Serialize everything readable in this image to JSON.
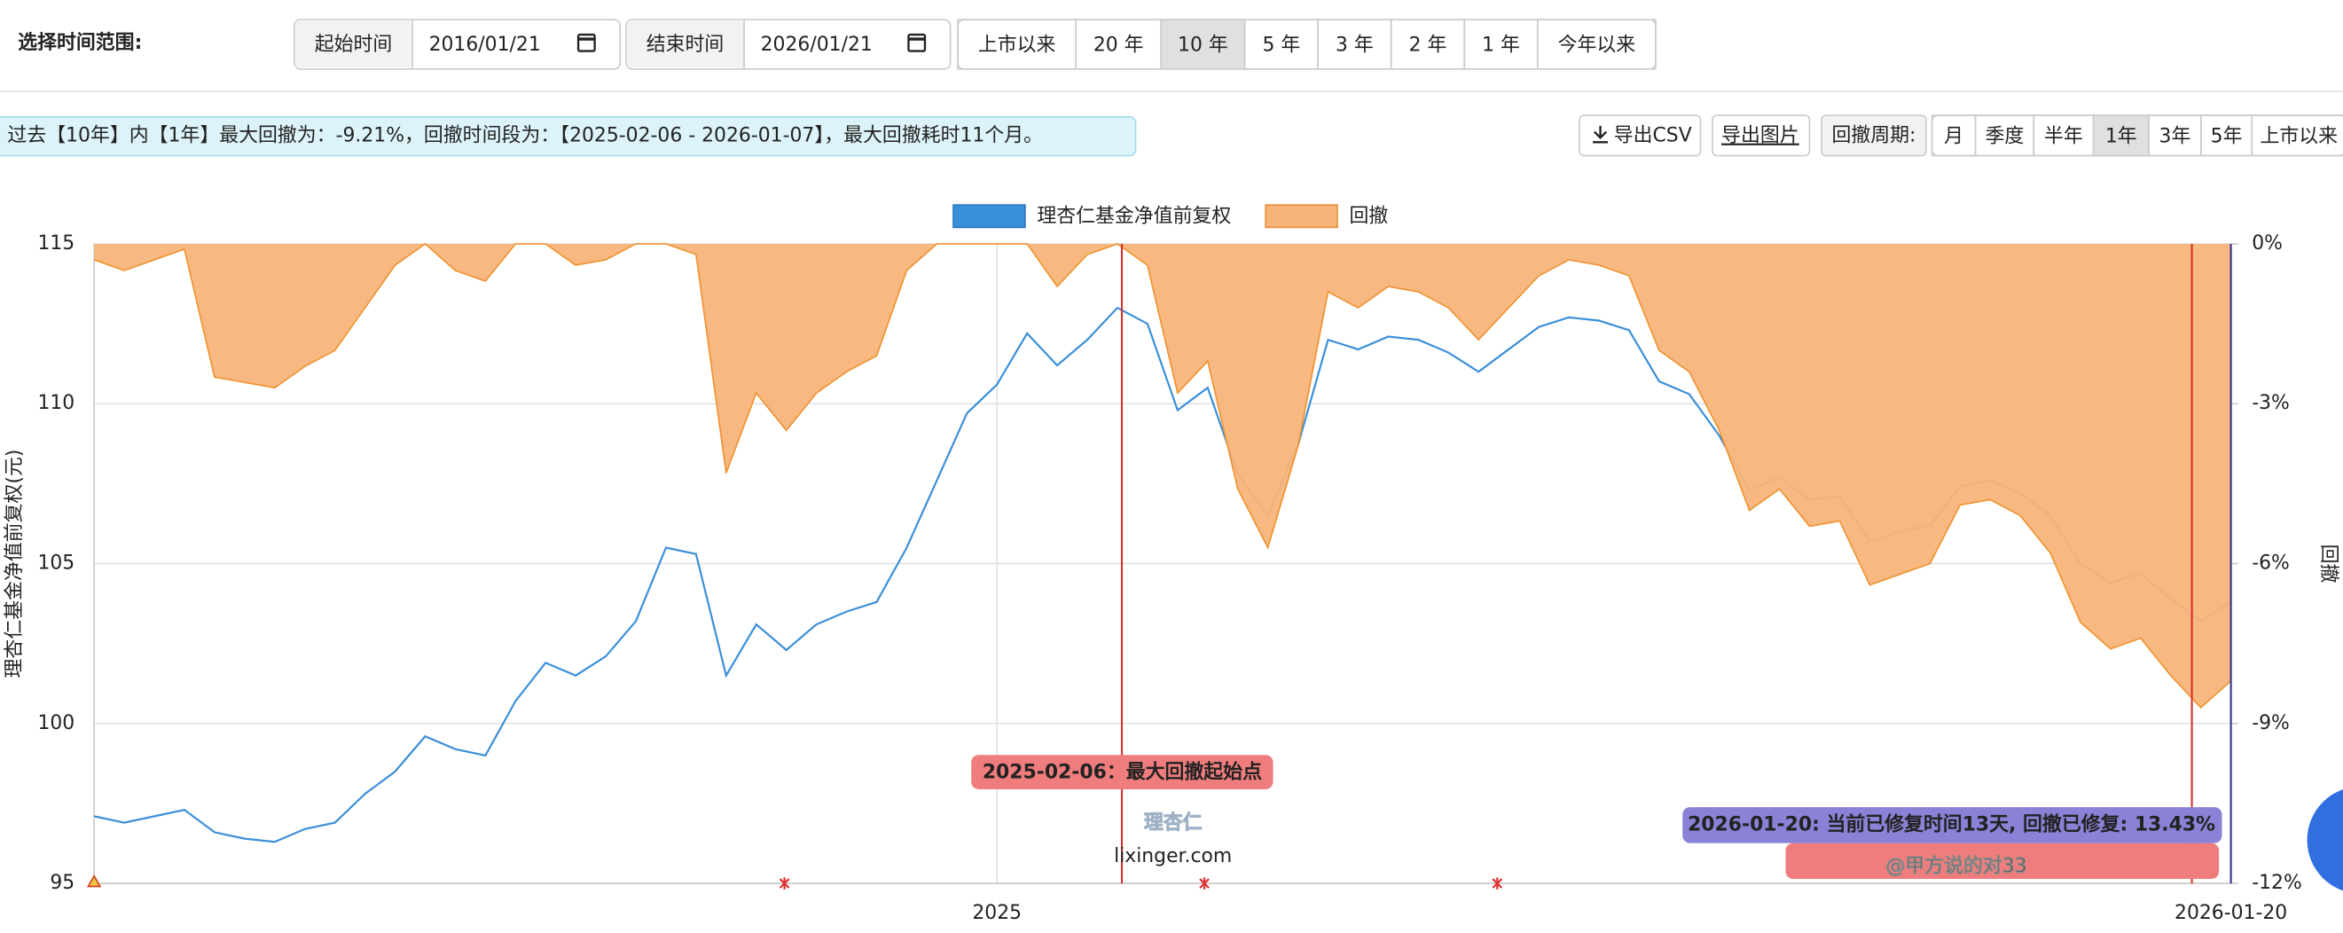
{
  "toolbar": {
    "label": "选择时间范围:",
    "start_label": "起始时间",
    "start_date": "2016/01/21",
    "end_label": "结束时间",
    "end_date": "2026/01/21",
    "ranges": [
      "上市以来",
      "20 年",
      "10 年",
      "5 年",
      "3 年",
      "2 年",
      "1 年",
      "今年以来"
    ],
    "active_range": 2
  },
  "summary": "过去【10年】内【1年】最大回撤为：-9.21%，回撤时间段为：【2025-02-06 - 2026-01-07】，最大回撤耗时11个月。",
  "actions": [
    "导出CSV",
    "导出图片"
  ],
  "period_label": "回撤周期:",
  "periods": [
    "月",
    "季度",
    "半年",
    "1年",
    "3年",
    "5年",
    "上市以来"
  ],
  "active_period": 3,
  "logo": [
    "理杏仁",
    "lixinger.com"
  ],
  "watermark": "@甲方说的对33",
  "chart_data": {
    "type": "line",
    "y_label": "理杏仁基金净值前复权(元)",
    "y2_label": "回撤",
    "categories": [
      null,
      null,
      null,
      null,
      null,
      null,
      null,
      null,
      null,
      null,
      null,
      null,
      null,
      null,
      null,
      null,
      null,
      null,
      null,
      null,
      null,
      null,
      null,
      null,
      null,
      null,
      null,
      null,
      null,
      null,
      "2025",
      null,
      null,
      null,
      null,
      null,
      null,
      null,
      null,
      null,
      null,
      null,
      null,
      null,
      null,
      null,
      null,
      null,
      null,
      null,
      null,
      null,
      null,
      null,
      null,
      null,
      null,
      null,
      null,
      null,
      null,
      null,
      null,
      null,
      null,
      null,
      null,
      null,
      null,
      null,
      null,
      "2026-01-20"
    ],
    "series": [
      {
        "name": "理杏仁基金净值前复权",
        "type": "line",
        "color": "#3a8fd9",
        "values": [
          97.1,
          96.9,
          97.1,
          97.3,
          96.6,
          96.4,
          96.3,
          96.7,
          96.9,
          97.8,
          98.5,
          99.6,
          99.2,
          99.0,
          100.7,
          101.9,
          101.5,
          102.1,
          103.2,
          105.5,
          105.3,
          101.5,
          103.1,
          102.3,
          103.1,
          103.5,
          103.8,
          105.5,
          107.6,
          109.7,
          110.6,
          112.2,
          111.2,
          112.0,
          113.0,
          112.5,
          109.8,
          110.5,
          107.8,
          106.5,
          108.7,
          112.0,
          111.7,
          112.1,
          112.0,
          111.6,
          111.0,
          111.7,
          112.4,
          112.7,
          112.6,
          112.3,
          110.7,
          110.3,
          109.0,
          107.3,
          107.7,
          107.0,
          107.1,
          105.7,
          106.0,
          106.2,
          107.4,
          107.6,
          107.2,
          106.5,
          105.0,
          104.4,
          104.7,
          103.9,
          103.2,
          103.8
        ]
      },
      {
        "name": "回撤",
        "type": "area",
        "axis": "y2",
        "color": "#f7b47a",
        "values": [
          -0.3,
          -0.5,
          -0.3,
          -0.1,
          -2.5,
          -2.6,
          -2.7,
          -2.3,
          -2.0,
          -1.2,
          -0.4,
          0,
          -0.5,
          -0.7,
          0,
          0,
          -0.4,
          -0.3,
          0,
          0,
          -0.2,
          -4.3,
          -2.8,
          -3.5,
          -2.8,
          -2.4,
          -2.1,
          -0.5,
          0,
          0,
          0,
          0,
          -0.8,
          -0.2,
          0,
          -0.4,
          -2.8,
          -2.2,
          -4.6,
          -5.7,
          -3.8,
          -0.9,
          -1.2,
          -0.8,
          -0.9,
          -1.2,
          -1.8,
          -1.2,
          -0.6,
          -0.3,
          -0.4,
          -0.6,
          -2.0,
          -2.4,
          -3.5,
          -5.0,
          -4.6,
          -5.3,
          -5.2,
          -6.4,
          -6.2,
          -6.0,
          -4.9,
          -4.8,
          -5.1,
          -5.8,
          -7.1,
          -7.6,
          -7.4,
          -8.1,
          -8.7,
          -8.2
        ]
      }
    ],
    "ylim": [
      95,
      115
    ],
    "yticks": [
      95,
      100,
      105,
      110,
      115
    ],
    "y2lim": [
      -12,
      0
    ],
    "y2ticks": [
      {
        "value": -12,
        "label": "-12%"
      },
      {
        "value": -9,
        "label": "-9%"
      },
      {
        "value": -6,
        "label": "-6%"
      },
      {
        "value": -3,
        "label": "-3%"
      },
      {
        "value": 0,
        "label": "0%"
      }
    ],
    "grid": true,
    "legend": "top",
    "annotations": [
      "2025-02-06：最大回撤起始点",
      "2026-01-20: 当前已修复时间13天, 回撤已修复: 13.43%"
    ]
  }
}
